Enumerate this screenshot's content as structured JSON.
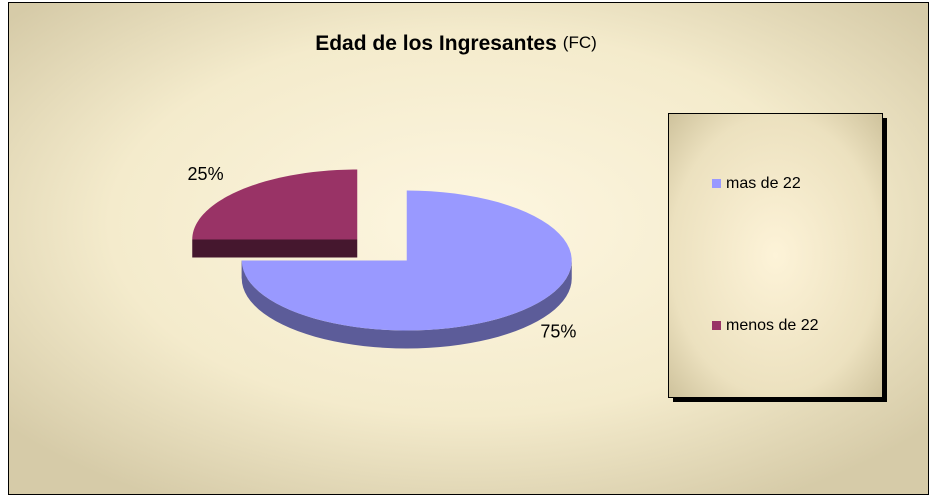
{
  "chart_data": {
    "type": "pie",
    "title": "Edad de los Ingresantes",
    "subtitle": "(FC)",
    "categories": [
      "mas de 22",
      "menos de 22"
    ],
    "values": [
      75,
      25
    ],
    "value_labels": [
      "75%",
      "25%"
    ],
    "colors": [
      "#9999ff",
      "#993366"
    ],
    "legend": "right",
    "exploded": true,
    "three_d": true
  }
}
